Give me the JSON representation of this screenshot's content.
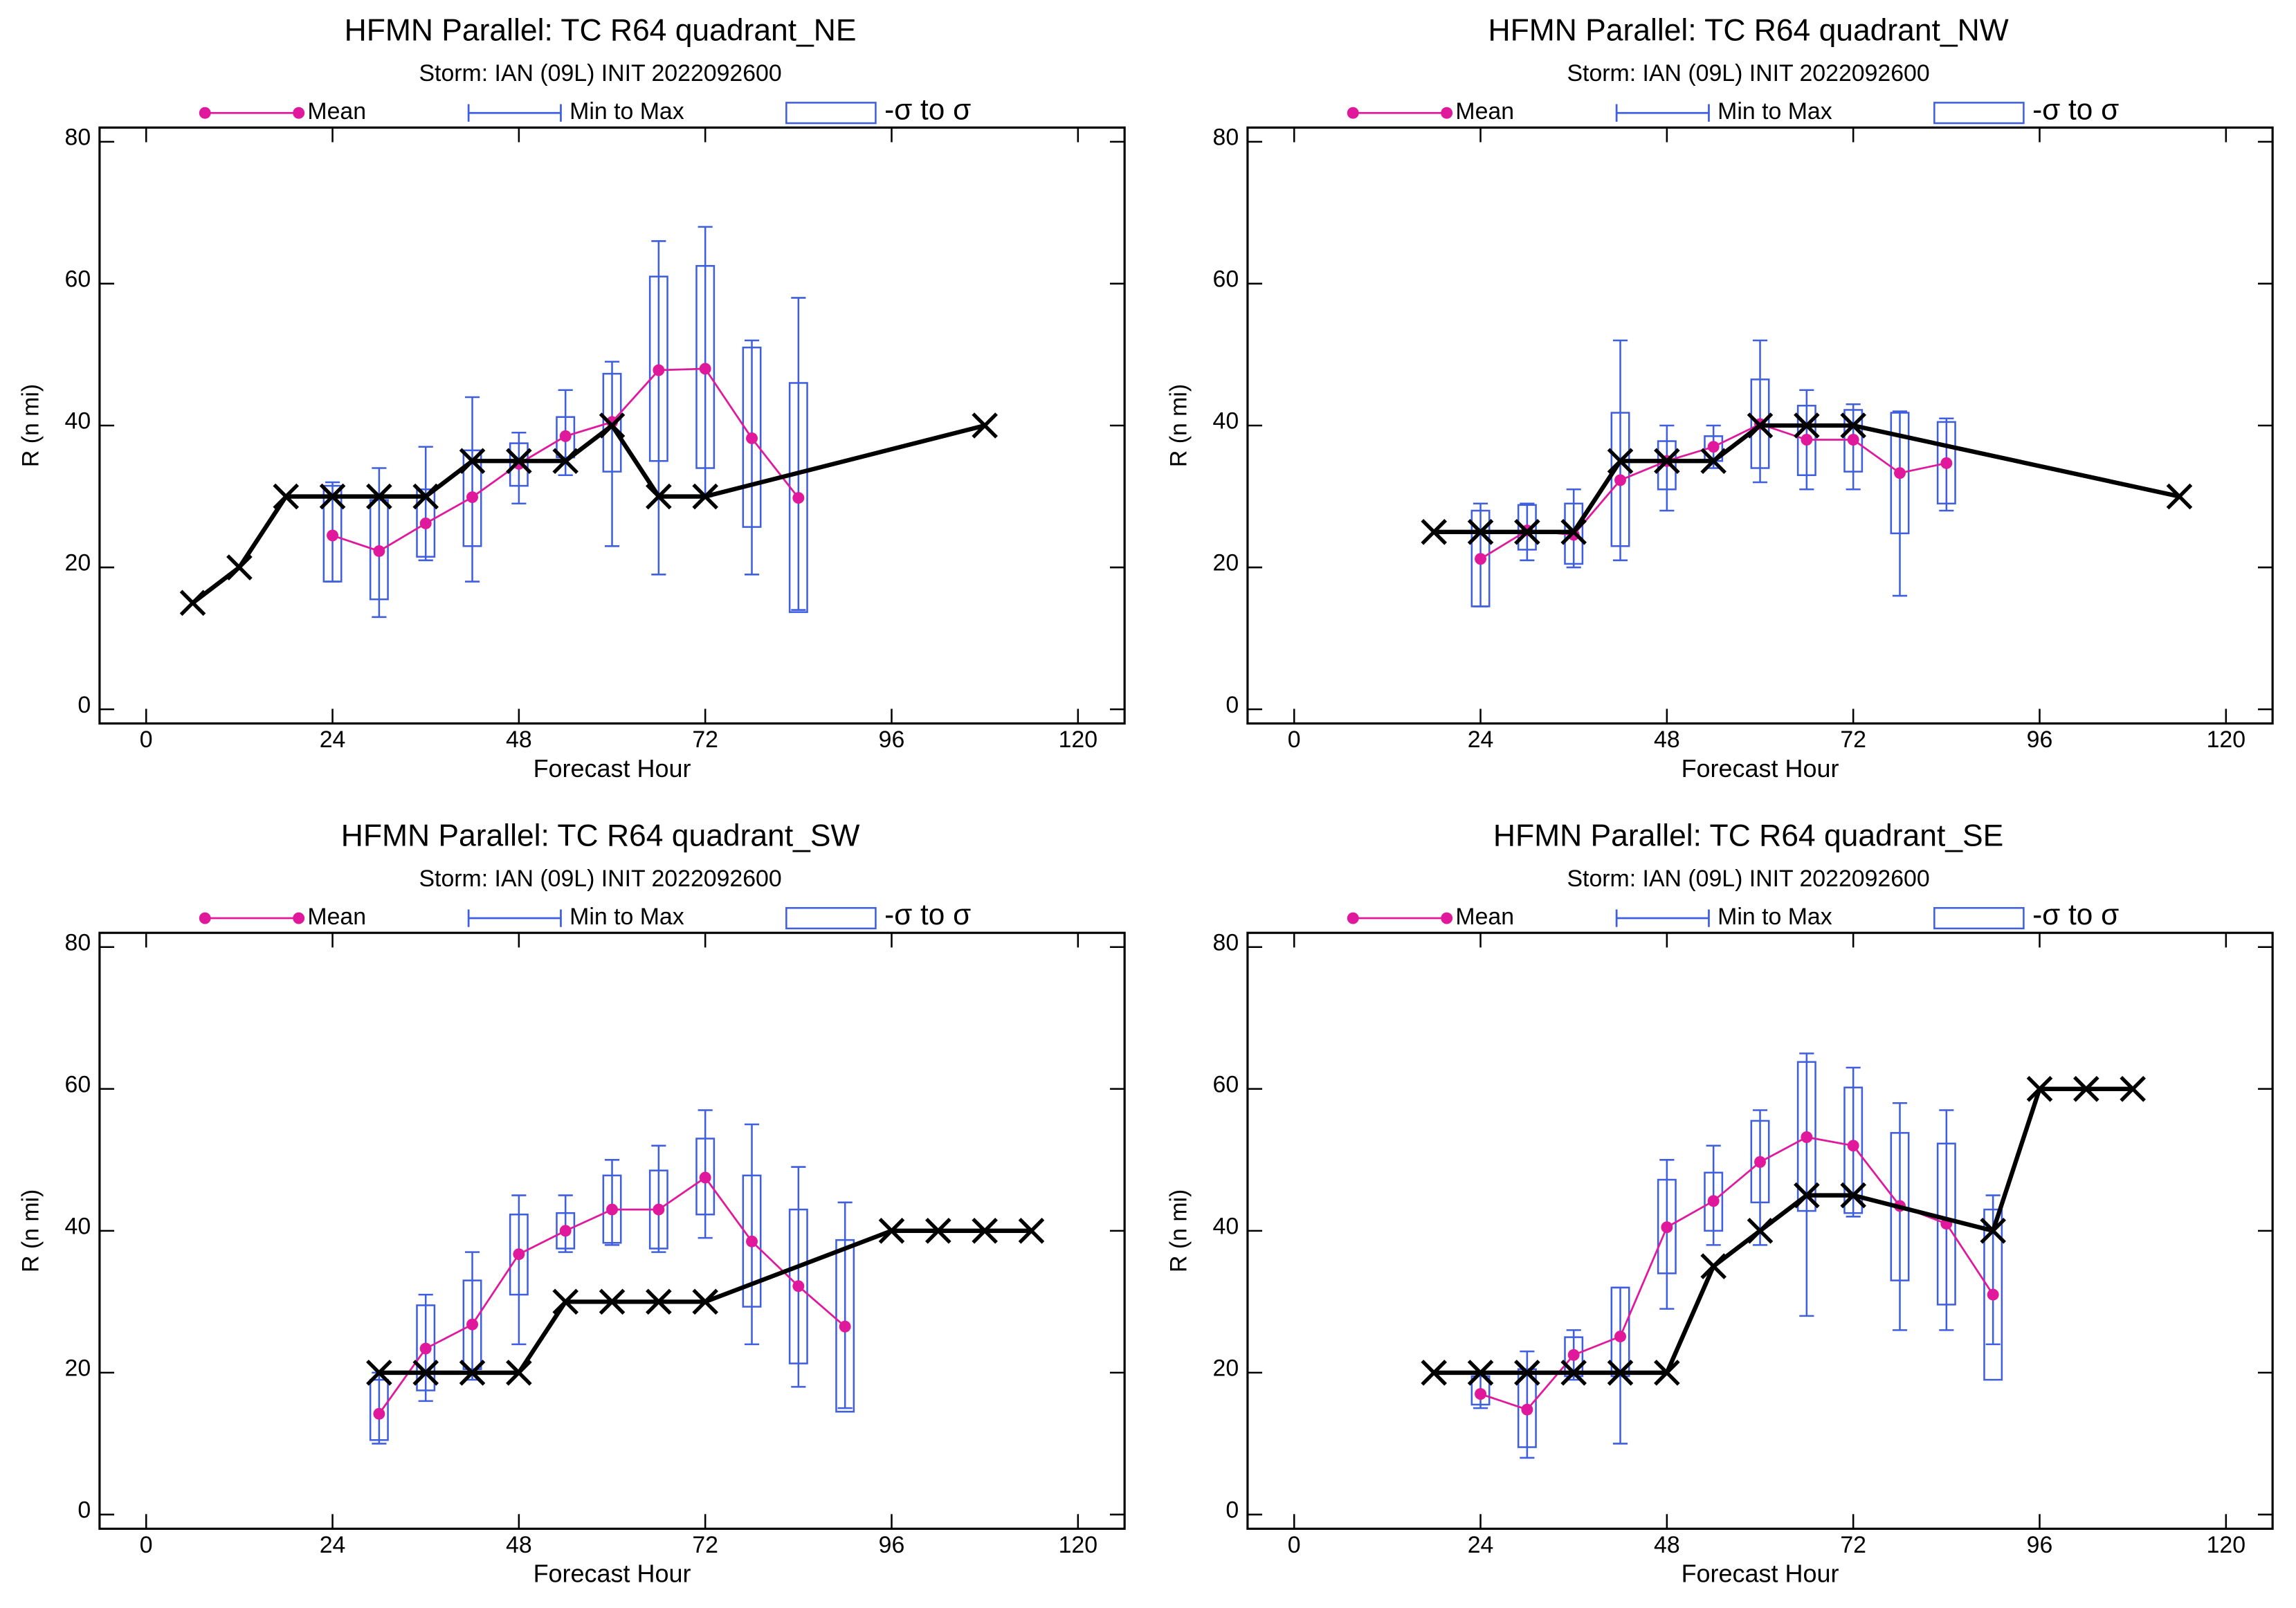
{
  "chart_data": [
    {
      "type": "line",
      "title": "HFMN Parallel: TC  R64 quadrant_NE",
      "subtitle": "Storm: IAN (09L) INIT 2022092600",
      "xlabel": "Forecast Hour",
      "ylabel": "R (n mi)",
      "xlim": [
        -6,
        126
      ],
      "xticks": [
        0,
        24,
        48,
        72,
        96,
        120
      ],
      "ylim": [
        -2,
        82
      ],
      "yticks": [
        0,
        20,
        40,
        60,
        80
      ],
      "series": [
        {
          "name": "Mean",
          "color": "#e0189c",
          "x": [
            24,
            30,
            36,
            42,
            48,
            54,
            60,
            66,
            72,
            78,
            84
          ],
          "values": [
            24.5,
            22.3,
            26.2,
            29.9,
            34.6,
            38.5,
            40.5,
            47.8,
            48,
            38.2,
            29.8
          ]
        },
        {
          "name": "Min to Max",
          "color": "#3f5fe0",
          "x": [
            24,
            30,
            36,
            42,
            48,
            54,
            60,
            66,
            72,
            78,
            84
          ],
          "low": [
            18,
            13,
            21,
            18,
            29,
            33,
            23,
            19,
            30,
            19,
            14
          ],
          "high": [
            32,
            34,
            37,
            44,
            39,
            45,
            49,
            66,
            68,
            52,
            58
          ]
        },
        {
          "name": "-σ to σ",
          "color": "#3f5fe0",
          "x": [
            24,
            30,
            36,
            42,
            48,
            54,
            60,
            66,
            72,
            78,
            84
          ],
          "low": [
            18,
            15.5,
            21.5,
            23,
            31.5,
            35.5,
            33.5,
            35,
            34,
            25.7,
            13.7
          ],
          "high": [
            31.5,
            29.5,
            31,
            36.5,
            37.5,
            41.2,
            47.3,
            61,
            62.5,
            51,
            46
          ]
        },
        {
          "color": "#000000",
          "x": [
            6,
            12,
            18,
            24,
            30,
            36,
            42,
            48,
            54,
            60,
            66,
            72,
            108
          ],
          "values": [
            15,
            20,
            30,
            30,
            30,
            30,
            35,
            35,
            35,
            40,
            30,
            30,
            40
          ]
        }
      ]
    },
    {
      "type": "line",
      "title": "HFMN Parallel: TC  R64 quadrant_NW",
      "subtitle": "Storm: IAN (09L) INIT 2022092600",
      "xlabel": "Forecast Hour",
      "ylabel": "R (n mi)",
      "xlim": [
        -6,
        126
      ],
      "xticks": [
        0,
        24,
        48,
        72,
        96,
        120
      ],
      "ylim": [
        -2,
        82
      ],
      "yticks": [
        0,
        20,
        40,
        60,
        80
      ],
      "series": [
        {
          "name": "Mean",
          "color": "#e0189c",
          "x": [
            24,
            30,
            36,
            42,
            48,
            54,
            60,
            66,
            72,
            78,
            84
          ],
          "values": [
            21.2,
            25.2,
            24.6,
            32.3,
            35,
            37,
            40.2,
            38,
            38,
            33.3,
            34.7
          ]
        },
        {
          "name": "Min to Max",
          "color": "#3f5fe0",
          "x": [
            24,
            30,
            36,
            42,
            48,
            54,
            60,
            66,
            72,
            78,
            84
          ],
          "low": [
            14.5,
            21,
            20,
            21,
            28,
            34,
            32,
            31,
            31,
            16,
            28
          ],
          "high": [
            29,
            29,
            31,
            52,
            40,
            40,
            52,
            45,
            43,
            42,
            41
          ]
        },
        {
          "name": "-σ to σ",
          "color": "#3f5fe0",
          "x": [
            24,
            30,
            36,
            42,
            48,
            54,
            60,
            66,
            72,
            78,
            84
          ],
          "low": [
            14.5,
            22.5,
            20.5,
            23,
            31,
            35,
            34,
            33,
            33.5,
            24.8,
            29
          ],
          "high": [
            28,
            28.8,
            29,
            41.8,
            37.8,
            38.5,
            46.5,
            42.8,
            42.2,
            41.8,
            40.5
          ]
        },
        {
          "color": "#000000",
          "x": [
            18,
            24,
            30,
            36,
            42,
            48,
            54,
            60,
            66,
            72,
            114
          ],
          "values": [
            25,
            25,
            25,
            25,
            35,
            35,
            35,
            40,
            40,
            40,
            30
          ]
        }
      ]
    },
    {
      "type": "line",
      "title": "HFMN Parallel: TC  R64 quadrant_SW",
      "subtitle": "Storm: IAN (09L) INIT 2022092600",
      "xlabel": "Forecast Hour",
      "ylabel": "R (n mi)",
      "xlim": [
        -6,
        126
      ],
      "xticks": [
        0,
        24,
        48,
        72,
        96,
        120
      ],
      "ylim": [
        -2,
        82
      ],
      "yticks": [
        0,
        20,
        40,
        60,
        80
      ],
      "series": [
        {
          "name": "Mean",
          "color": "#e0189c",
          "x": [
            30,
            36,
            42,
            48,
            54,
            60,
            66,
            72,
            78,
            84,
            90
          ],
          "values": [
            14.2,
            23.4,
            26.8,
            36.7,
            40,
            43,
            43,
            47.5,
            38.5,
            32.2,
            26.5
          ]
        },
        {
          "name": "Min to Max",
          "color": "#3f5fe0",
          "x": [
            30,
            36,
            42,
            48,
            54,
            60,
            66,
            72,
            78,
            84,
            90
          ],
          "low": [
            10,
            16,
            19,
            24,
            37,
            38,
            37,
            39,
            24,
            18,
            15
          ],
          "high": [
            20,
            31,
            37,
            45,
            45,
            50,
            52,
            57,
            55,
            49,
            44
          ]
        },
        {
          "name": "-σ to σ",
          "color": "#3f5fe0",
          "x": [
            30,
            36,
            42,
            48,
            54,
            60,
            66,
            72,
            78,
            84,
            90
          ],
          "low": [
            10.5,
            17.5,
            20.5,
            31,
            37.5,
            38.3,
            37.5,
            42.3,
            29.3,
            21.3,
            14.5
          ],
          "high": [
            19,
            29.5,
            33,
            42.3,
            42.5,
            47.8,
            48.5,
            53,
            47.8,
            43,
            38.7
          ]
        },
        {
          "color": "#000000",
          "x": [
            30,
            36,
            42,
            48,
            54,
            60,
            66,
            72,
            96,
            102,
            108,
            114
          ],
          "values": [
            20,
            20,
            20,
            20,
            30,
            30,
            30,
            30,
            40,
            40,
            40,
            40
          ]
        }
      ]
    },
    {
      "type": "line",
      "title": "HFMN Parallel: TC  R64 quadrant_SE",
      "subtitle": "Storm: IAN (09L) INIT 2022092600",
      "xlabel": "Forecast Hour",
      "ylabel": "R (n mi)",
      "xlim": [
        -6,
        126
      ],
      "xticks": [
        0,
        24,
        48,
        72,
        96,
        120
      ],
      "ylim": [
        -2,
        82
      ],
      "yticks": [
        0,
        20,
        40,
        60,
        80
      ],
      "series": [
        {
          "name": "Mean",
          "color": "#e0189c",
          "x": [
            24,
            30,
            36,
            42,
            48,
            54,
            60,
            66,
            72,
            78,
            84,
            90
          ],
          "values": [
            17,
            14.8,
            22.5,
            25.1,
            40.5,
            44.2,
            49.7,
            53.2,
            52,
            43.5,
            41,
            31
          ]
        },
        {
          "name": "Min to Max",
          "color": "#3f5fe0",
          "x": [
            24,
            30,
            36,
            42,
            48,
            54,
            60,
            66,
            72,
            78,
            84,
            90
          ],
          "low": [
            15,
            8,
            19,
            10,
            29,
            38,
            38,
            28,
            42,
            26,
            26,
            24
          ],
          "high": [
            20,
            23,
            26,
            32,
            50,
            52,
            57,
            65,
            63,
            58,
            57,
            45
          ]
        },
        {
          "name": "-σ to σ",
          "color": "#3f5fe0",
          "x": [
            24,
            30,
            36,
            42,
            48,
            54,
            60,
            66,
            72,
            78,
            84,
            90
          ],
          "low": [
            15.5,
            9.5,
            19.5,
            19.5,
            34,
            40,
            44,
            42.8,
            42.5,
            33,
            29.6,
            19
          ],
          "high": [
            19.5,
            20.5,
            25,
            32,
            47.2,
            48.2,
            55.5,
            63.8,
            60.2,
            53.8,
            52.3,
            43
          ]
        },
        {
          "color": "#000000",
          "x": [
            18,
            24,
            30,
            36,
            42,
            48,
            54,
            60,
            66,
            72,
            90,
            96,
            102,
            108
          ],
          "values": [
            20,
            20,
            20,
            20,
            20,
            20,
            35,
            40,
            45,
            45,
            40,
            60,
            60,
            60
          ]
        }
      ]
    }
  ]
}
